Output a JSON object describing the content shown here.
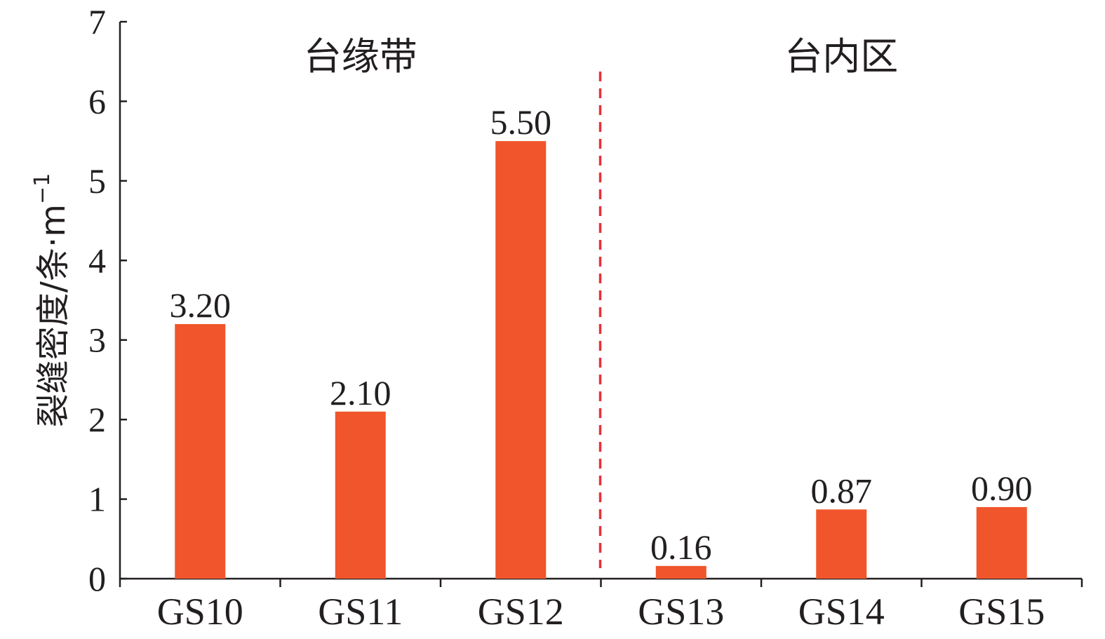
{
  "chart_data": {
    "type": "bar",
    "categories": [
      "GS10",
      "GS11",
      "GS12",
      "GS13",
      "GS14",
      "GS15"
    ],
    "values": [
      3.2,
      2.1,
      5.5,
      0.16,
      0.87,
      0.9
    ],
    "value_labels": [
      "3.20",
      "2.10",
      "5.50",
      "0.16",
      "0.87",
      "0.90"
    ],
    "ylabel": "裂缝密度/条·m",
    "ylabel_superscript": "−1",
    "ylim": [
      0,
      7
    ],
    "yticks": [
      "0",
      "1",
      "2",
      "3",
      "4",
      "5",
      "6",
      "7"
    ],
    "groups": [
      {
        "label": "台缘带",
        "categories": [
          "GS10",
          "GS11",
          "GS12"
        ]
      },
      {
        "label": "台内区",
        "categories": [
          "GS13",
          "GS14",
          "GS15"
        ]
      }
    ],
    "divider": {
      "between": [
        "GS12",
        "GS13"
      ],
      "style": "dashed",
      "color": "#e8303a"
    },
    "bar_color": "#f0552b",
    "axis_color": "#231f20",
    "grid": false,
    "legend": "none"
  }
}
